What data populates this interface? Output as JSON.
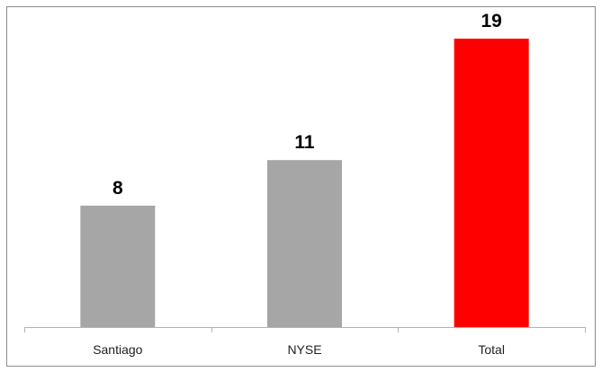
{
  "chart_data": {
    "type": "bar",
    "categories": [
      "Santiago",
      "NYSE",
      "Total"
    ],
    "values": [
      8,
      11,
      19
    ],
    "data_labels": [
      "8",
      "11",
      "19"
    ],
    "colors": [
      "#a6a6a6",
      "#a6a6a6",
      "#ff0000"
    ],
    "ylim": [
      0,
      20
    ],
    "grid": false,
    "legend": "none",
    "title": "",
    "xlabel": "",
    "ylabel": ""
  }
}
